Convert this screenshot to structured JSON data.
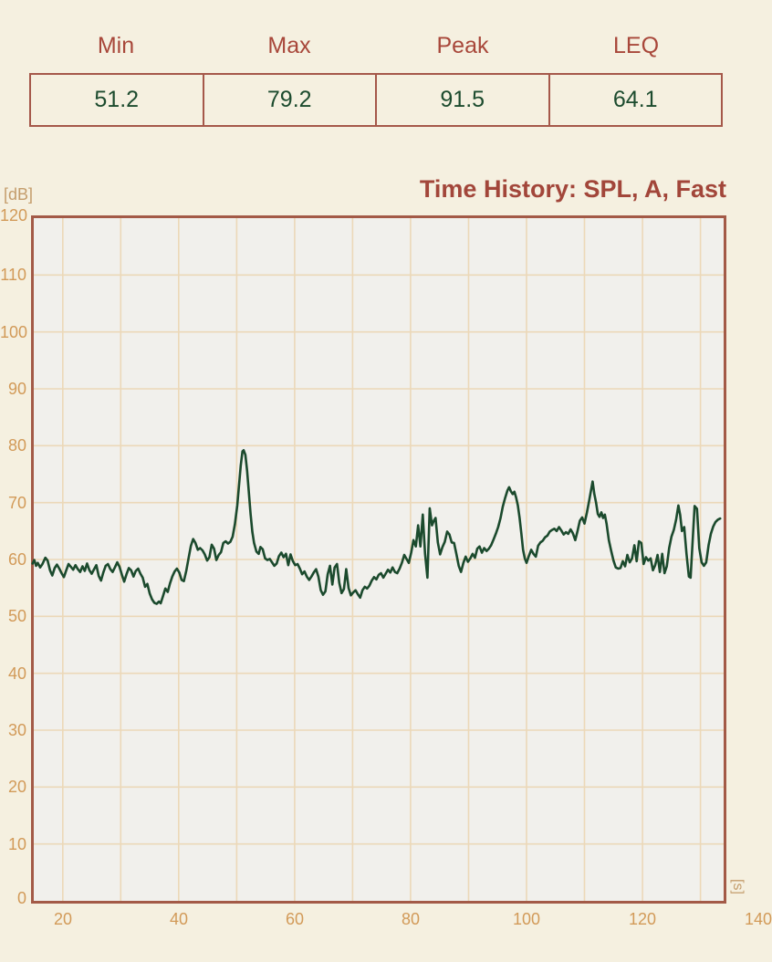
{
  "stats": {
    "headers": [
      "Min",
      "Max",
      "Peak",
      "LEQ"
    ],
    "values": [
      "51.2",
      "79.2",
      "91.5",
      "64.1"
    ]
  },
  "chart": {
    "title": "Time History: SPL, A, Fast",
    "y_unit": "[dB]",
    "x_unit": "[s]"
  },
  "colors": {
    "page_bg": "#f5f0e0",
    "plot_bg": "#f1f0ec",
    "grid": "#ecd8b8",
    "frame": "#a35a47",
    "title_text": "#a2463a",
    "header_text": "#a8473a",
    "value_text": "#1c4b2e",
    "line": "#1b4a2d",
    "tick_text": "#d29a58",
    "unit_text": "#c49d6c"
  },
  "chart_data": {
    "type": "line",
    "title": "Time History: SPL, A, Fast",
    "xlabel": "[s]",
    "ylabel": "[dB]",
    "xlim": [
      15,
      134
    ],
    "ylim": [
      0,
      120
    ],
    "x_tick_labels": [
      20,
      40,
      60,
      80,
      100,
      120,
      140
    ],
    "x_grid_step": 10,
    "y_grid_step": 10,
    "grid": true,
    "legend": false,
    "series": [
      {
        "name": "SPL, A, Fast",
        "points": [
          [
            14.8,
            59.3
          ],
          [
            15.1,
            59.9
          ],
          [
            15.4,
            58.9
          ],
          [
            15.7,
            59.4
          ],
          [
            16.1,
            58.6
          ],
          [
            16.5,
            59.2
          ],
          [
            17.0,
            60.3
          ],
          [
            17.4,
            59.8
          ],
          [
            17.8,
            58.1
          ],
          [
            18.2,
            57.2
          ],
          [
            18.6,
            58.5
          ],
          [
            19.0,
            59.1
          ],
          [
            19.4,
            58.4
          ],
          [
            19.8,
            57.6
          ],
          [
            20.2,
            56.9
          ],
          [
            20.6,
            58.1
          ],
          [
            21.0,
            59.2
          ],
          [
            21.4,
            58.7
          ],
          [
            21.8,
            58.2
          ],
          [
            22.2,
            59.0
          ],
          [
            22.6,
            58.3
          ],
          [
            23.0,
            57.8
          ],
          [
            23.4,
            58.8
          ],
          [
            23.8,
            58.0
          ],
          [
            24.2,
            59.3
          ],
          [
            24.6,
            58.1
          ],
          [
            25.0,
            57.5
          ],
          [
            25.4,
            58.3
          ],
          [
            25.8,
            59.0
          ],
          [
            26.2,
            57.1
          ],
          [
            26.6,
            56.3
          ],
          [
            27.0,
            57.7
          ],
          [
            27.4,
            58.9
          ],
          [
            27.8,
            59.2
          ],
          [
            28.2,
            58.3
          ],
          [
            28.6,
            57.8
          ],
          [
            29.0,
            58.6
          ],
          [
            29.4,
            59.5
          ],
          [
            29.8,
            58.7
          ],
          [
            30.2,
            57.3
          ],
          [
            30.6,
            56.1
          ],
          [
            31.0,
            57.4
          ],
          [
            31.4,
            58.5
          ],
          [
            31.8,
            58.1
          ],
          [
            32.2,
            57.0
          ],
          [
            32.6,
            58.0
          ],
          [
            33.0,
            58.4
          ],
          [
            33.4,
            57.5
          ],
          [
            33.8,
            56.8
          ],
          [
            34.2,
            55.2
          ],
          [
            34.6,
            55.7
          ],
          [
            35.0,
            54.0
          ],
          [
            35.4,
            53.0
          ],
          [
            35.8,
            52.4
          ],
          [
            36.2,
            52.2
          ],
          [
            36.6,
            52.6
          ],
          [
            36.9,
            52.3
          ],
          [
            37.3,
            53.6
          ],
          [
            37.7,
            54.9
          ],
          [
            38.1,
            54.3
          ],
          [
            38.5,
            55.8
          ],
          [
            38.9,
            57.0
          ],
          [
            39.3,
            57.9
          ],
          [
            39.7,
            58.4
          ],
          [
            40.1,
            57.7
          ],
          [
            40.5,
            56.4
          ],
          [
            40.9,
            56.2
          ],
          [
            41.3,
            58.0
          ],
          [
            41.7,
            60.2
          ],
          [
            42.1,
            62.4
          ],
          [
            42.5,
            63.6
          ],
          [
            42.9,
            62.9
          ],
          [
            43.3,
            61.7
          ],
          [
            43.7,
            62.0
          ],
          [
            44.1,
            61.6
          ],
          [
            44.5,
            60.9
          ],
          [
            44.9,
            59.8
          ],
          [
            45.3,
            60.4
          ],
          [
            45.7,
            62.6
          ],
          [
            46.1,
            61.9
          ],
          [
            46.5,
            59.9
          ],
          [
            46.9,
            60.8
          ],
          [
            47.3,
            61.3
          ],
          [
            47.7,
            62.9
          ],
          [
            48.1,
            63.2
          ],
          [
            48.5,
            62.8
          ],
          [
            48.9,
            63.1
          ],
          [
            49.3,
            64.0
          ],
          [
            49.7,
            66.2
          ],
          [
            50.1,
            69.5
          ],
          [
            50.4,
            73.0
          ],
          [
            50.7,
            76.5
          ],
          [
            51.0,
            79.0
          ],
          [
            51.2,
            79.2
          ],
          [
            51.5,
            78.4
          ],
          [
            51.8,
            75.6
          ],
          [
            52.1,
            71.8
          ],
          [
            52.4,
            68.0
          ],
          [
            52.7,
            64.9
          ],
          [
            53.0,
            62.9
          ],
          [
            53.4,
            61.4
          ],
          [
            53.8,
            61.0
          ],
          [
            54.1,
            62.2
          ],
          [
            54.5,
            61.8
          ],
          [
            54.9,
            60.2
          ],
          [
            55.3,
            59.9
          ],
          [
            55.7,
            60.1
          ],
          [
            56.1,
            59.5
          ],
          [
            56.5,
            58.9
          ],
          [
            56.9,
            59.3
          ],
          [
            57.3,
            60.6
          ],
          [
            57.7,
            61.2
          ],
          [
            58.1,
            60.4
          ],
          [
            58.5,
            61.0
          ],
          [
            58.9,
            59.0
          ],
          [
            59.3,
            60.9
          ],
          [
            59.7,
            59.7
          ],
          [
            60.1,
            59.0
          ],
          [
            60.5,
            59.2
          ],
          [
            60.9,
            58.4
          ],
          [
            61.3,
            57.4
          ],
          [
            61.7,
            57.9
          ],
          [
            62.1,
            57.0
          ],
          [
            62.5,
            56.4
          ],
          [
            62.9,
            57.0
          ],
          [
            63.3,
            57.7
          ],
          [
            63.7,
            58.3
          ],
          [
            64.1,
            57.0
          ],
          [
            64.5,
            54.6
          ],
          [
            64.9,
            53.8
          ],
          [
            65.3,
            54.4
          ],
          [
            65.7,
            57.4
          ],
          [
            66.1,
            58.9
          ],
          [
            66.5,
            55.6
          ],
          [
            66.9,
            58.6
          ],
          [
            67.3,
            59.2
          ],
          [
            67.7,
            55.9
          ],
          [
            68.1,
            54.1
          ],
          [
            68.5,
            54.8
          ],
          [
            68.9,
            58.3
          ],
          [
            69.3,
            55.0
          ],
          [
            69.7,
            53.7
          ],
          [
            70.1,
            54.2
          ],
          [
            70.5,
            54.6
          ],
          [
            70.9,
            53.9
          ],
          [
            71.3,
            53.3
          ],
          [
            71.7,
            54.6
          ],
          [
            72.1,
            55.2
          ],
          [
            72.5,
            54.9
          ],
          [
            72.9,
            55.4
          ],
          [
            73.3,
            56.3
          ],
          [
            73.7,
            56.9
          ],
          [
            74.1,
            56.5
          ],
          [
            74.5,
            57.3
          ],
          [
            74.9,
            57.6
          ],
          [
            75.3,
            56.8
          ],
          [
            75.7,
            57.5
          ],
          [
            76.1,
            58.2
          ],
          [
            76.5,
            57.7
          ],
          [
            76.9,
            58.6
          ],
          [
            77.3,
            57.8
          ],
          [
            77.7,
            57.6
          ],
          [
            78.1,
            58.4
          ],
          [
            78.5,
            59.4
          ],
          [
            78.9,
            60.8
          ],
          [
            79.3,
            60.1
          ],
          [
            79.7,
            59.4
          ],
          [
            80.1,
            61.2
          ],
          [
            80.5,
            63.4
          ],
          [
            80.9,
            62.3
          ],
          [
            81.3,
            66.0
          ],
          [
            81.7,
            62.3
          ],
          [
            82.1,
            67.9
          ],
          [
            82.5,
            61.0
          ],
          [
            82.9,
            56.8
          ],
          [
            83.3,
            69.0
          ],
          [
            83.7,
            66.0
          ],
          [
            84.0,
            66.8
          ],
          [
            84.3,
            67.3
          ],
          [
            84.7,
            63.0
          ],
          [
            85.1,
            60.9
          ],
          [
            85.5,
            62.2
          ],
          [
            85.9,
            63.1
          ],
          [
            86.3,
            64.9
          ],
          [
            86.7,
            64.4
          ],
          [
            87.1,
            63.0
          ],
          [
            87.5,
            62.9
          ],
          [
            87.9,
            61.0
          ],
          [
            88.3,
            58.9
          ],
          [
            88.7,
            57.8
          ],
          [
            89.1,
            59.4
          ],
          [
            89.5,
            60.5
          ],
          [
            89.9,
            59.6
          ],
          [
            90.3,
            60.2
          ],
          [
            90.7,
            61.0
          ],
          [
            91.1,
            60.3
          ],
          [
            91.5,
            61.9
          ],
          [
            91.9,
            62.3
          ],
          [
            92.3,
            61.2
          ],
          [
            92.7,
            62.0
          ],
          [
            93.1,
            61.5
          ],
          [
            93.5,
            61.9
          ],
          [
            93.9,
            62.5
          ],
          [
            94.3,
            63.5
          ],
          [
            94.7,
            64.5
          ],
          [
            95.1,
            65.7
          ],
          [
            95.5,
            67.2
          ],
          [
            95.9,
            69.3
          ],
          [
            96.3,
            70.8
          ],
          [
            96.7,
            72.1
          ],
          [
            97.0,
            72.7
          ],
          [
            97.3,
            72.0
          ],
          [
            97.6,
            71.5
          ],
          [
            97.9,
            71.9
          ],
          [
            98.2,
            70.9
          ],
          [
            98.5,
            69.5
          ],
          [
            98.8,
            67.3
          ],
          [
            99.1,
            64.6
          ],
          [
            99.4,
            61.7
          ],
          [
            99.7,
            60.2
          ],
          [
            100.0,
            59.4
          ],
          [
            100.4,
            60.6
          ],
          [
            100.8,
            61.7
          ],
          [
            101.2,
            61.0
          ],
          [
            101.6,
            60.5
          ],
          [
            102.0,
            62.4
          ],
          [
            102.4,
            63.0
          ],
          [
            102.8,
            63.3
          ],
          [
            103.2,
            63.9
          ],
          [
            103.6,
            64.2
          ],
          [
            104.0,
            64.9
          ],
          [
            104.4,
            65.2
          ],
          [
            104.8,
            65.4
          ],
          [
            105.2,
            65.0
          ],
          [
            105.6,
            65.7
          ],
          [
            106.0,
            65.1
          ],
          [
            106.4,
            64.4
          ],
          [
            106.8,
            64.8
          ],
          [
            107.2,
            64.5
          ],
          [
            107.6,
            65.3
          ],
          [
            108.0,
            64.6
          ],
          [
            108.4,
            63.4
          ],
          [
            108.8,
            65.0
          ],
          [
            109.2,
            66.8
          ],
          [
            109.6,
            67.4
          ],
          [
            110.0,
            66.3
          ],
          [
            110.4,
            68.2
          ],
          [
            110.8,
            70.3
          ],
          [
            111.1,
            72.0
          ],
          [
            111.4,
            73.7
          ],
          [
            111.7,
            71.5
          ],
          [
            112.0,
            70.0
          ],
          [
            112.3,
            68.0
          ],
          [
            112.6,
            67.5
          ],
          [
            112.9,
            68.3
          ],
          [
            113.2,
            67.3
          ],
          [
            113.5,
            67.9
          ],
          [
            113.8,
            66.3
          ],
          [
            114.2,
            63.4
          ],
          [
            114.6,
            61.5
          ],
          [
            115.0,
            59.8
          ],
          [
            115.4,
            58.6
          ],
          [
            115.8,
            58.4
          ],
          [
            116.2,
            58.5
          ],
          [
            116.6,
            59.7
          ],
          [
            117.0,
            58.8
          ],
          [
            117.4,
            60.8
          ],
          [
            117.8,
            59.5
          ],
          [
            118.2,
            60.2
          ],
          [
            118.6,
            62.5
          ],
          [
            119.0,
            59.7
          ],
          [
            119.4,
            63.2
          ],
          [
            119.8,
            62.9
          ],
          [
            120.2,
            59.2
          ],
          [
            120.6,
            60.4
          ],
          [
            121.0,
            59.8
          ],
          [
            121.4,
            60.2
          ],
          [
            121.8,
            58.1
          ],
          [
            122.2,
            59.0
          ],
          [
            122.6,
            60.8
          ],
          [
            123.0,
            57.8
          ],
          [
            123.4,
            61.0
          ],
          [
            123.8,
            57.6
          ],
          [
            124.2,
            58.8
          ],
          [
            124.6,
            62.0
          ],
          [
            125.0,
            64.0
          ],
          [
            125.4,
            65.2
          ],
          [
            125.8,
            67.0
          ],
          [
            126.2,
            69.5
          ],
          [
            126.5,
            67.8
          ],
          [
            126.8,
            65.0
          ],
          [
            127.2,
            65.7
          ],
          [
            127.6,
            61.0
          ],
          [
            128.0,
            57.0
          ],
          [
            128.3,
            56.8
          ],
          [
            128.7,
            64.0
          ],
          [
            129.0,
            69.4
          ],
          [
            129.4,
            68.9
          ],
          [
            129.8,
            62.0
          ],
          [
            130.2,
            59.5
          ],
          [
            130.6,
            58.9
          ],
          [
            131.0,
            59.5
          ],
          [
            131.4,
            62.5
          ],
          [
            131.8,
            64.5
          ],
          [
            132.2,
            65.8
          ],
          [
            132.6,
            66.6
          ],
          [
            133.0,
            67.0
          ],
          [
            133.4,
            67.2
          ]
        ]
      }
    ]
  }
}
